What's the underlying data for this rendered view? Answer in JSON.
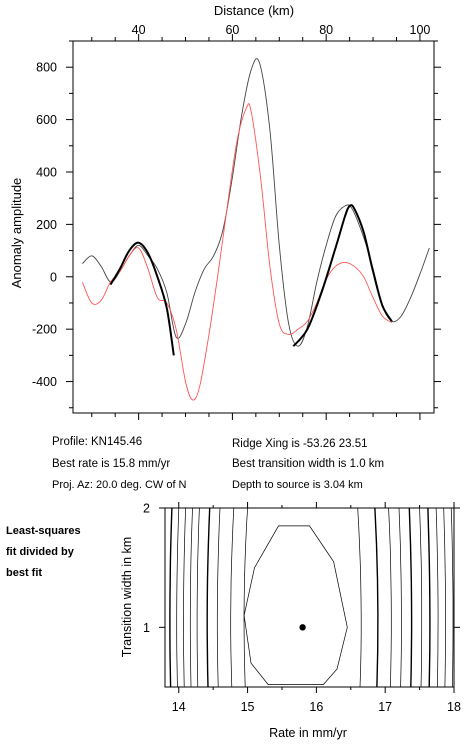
{
  "chart_data": [
    {
      "type": "line",
      "xlabel": "Distance (km)",
      "ylabel": "Anomaly amplitude",
      "xlim": [
        26,
        103
      ],
      "ylim": [
        -520,
        900
      ],
      "x_ticks": [
        40,
        60,
        80,
        100
      ],
      "y_ticks": [
        -400,
        -200,
        0,
        200,
        400,
        600,
        800
      ],
      "grid": false,
      "series": [
        {
          "style": "thin-gray",
          "color": "#444444",
          "x": [
            28,
            30,
            32,
            34,
            36,
            38,
            40,
            42,
            44,
            46,
            48,
            50,
            52,
            54,
            56,
            58,
            60,
            62,
            64,
            65.8,
            68,
            70,
            72,
            74,
            76,
            78,
            80,
            82,
            84,
            85.5,
            88,
            90,
            92,
            94,
            96,
            98,
            100,
            102
          ],
          "values": [
            50,
            80,
            40,
            -20,
            20,
            80,
            120,
            80,
            30,
            -60,
            -230,
            -180,
            -60,
            30,
            80,
            180,
            380,
            620,
            790,
            815,
            560,
            120,
            -180,
            -265,
            -190,
            -20,
            120,
            230,
            270,
            260,
            150,
            30,
            -110,
            -170,
            -150,
            -80,
            10,
            110
          ]
        },
        {
          "style": "thick-black",
          "color": "#000000",
          "segments": [
            {
              "x": [
                34,
                36,
                38,
                40,
                42,
                44,
                46,
                47.5
              ],
              "values": [
                -30,
                30,
                100,
                130,
                90,
                0,
                -120,
                -300
              ]
            },
            {
              "x": [
                73,
                76,
                79,
                82,
                84,
                85,
                86,
                88,
                90,
                92,
                94
              ],
              "values": [
                -265,
                -200,
                -60,
                110,
                230,
                270,
                260,
                170,
                20,
                -110,
                -170
              ]
            }
          ]
        },
        {
          "style": "thin-red",
          "color": "#ff5555",
          "x": [
            28,
            30,
            32,
            34,
            36,
            38,
            40,
            42,
            44,
            46,
            48,
            50,
            51.5,
            53,
            55,
            57,
            59,
            61,
            63,
            64,
            66,
            68,
            70,
            72,
            74,
            76,
            78,
            80,
            82,
            84,
            86,
            88,
            90,
            92,
            94
          ],
          "values": [
            -20,
            -100,
            -90,
            -20,
            20,
            80,
            110,
            30,
            -80,
            -100,
            -200,
            -400,
            -470,
            -420,
            -220,
            20,
            280,
            520,
            645,
            630,
            380,
            40,
            -180,
            -220,
            -200,
            -170,
            -100,
            -10,
            40,
            55,
            40,
            0,
            -80,
            -150,
            -175
          ]
        }
      ]
    },
    {
      "type": "contour",
      "xlabel": "Rate in mm/yr",
      "ylabel": "Transition width in km",
      "xlim": [
        13.8,
        18
      ],
      "ylim": [
        0.5,
        2
      ],
      "x_ticks": [
        14,
        15,
        16,
        17,
        18
      ],
      "y_ticks": [
        1,
        2
      ],
      "best_fit": {
        "rate": 15.8,
        "width": 1.0
      },
      "contour_rates": [
        13.9,
        14.0,
        14.1,
        14.2,
        14.3,
        14.45,
        14.6,
        14.8,
        15.0,
        16.6,
        16.85,
        17.05,
        17.2,
        17.35,
        17.5,
        17.62,
        17.74,
        17.85,
        17.96
      ]
    }
  ],
  "info": {
    "profile": "Profile: KN145.46",
    "best_rate": "Best rate is 15.8 mm/yr",
    "proj_az": "Proj. Az: 20.0 deg. CW of N",
    "ridge_xing": "Ridge Xing is -53.26 23.51",
    "best_transition": "Best transition width is 1.0 km",
    "depth": "Depth to source is   3.04 km"
  },
  "side_note": [
    "Least-squares",
    "fit divided by",
    "best fit"
  ]
}
